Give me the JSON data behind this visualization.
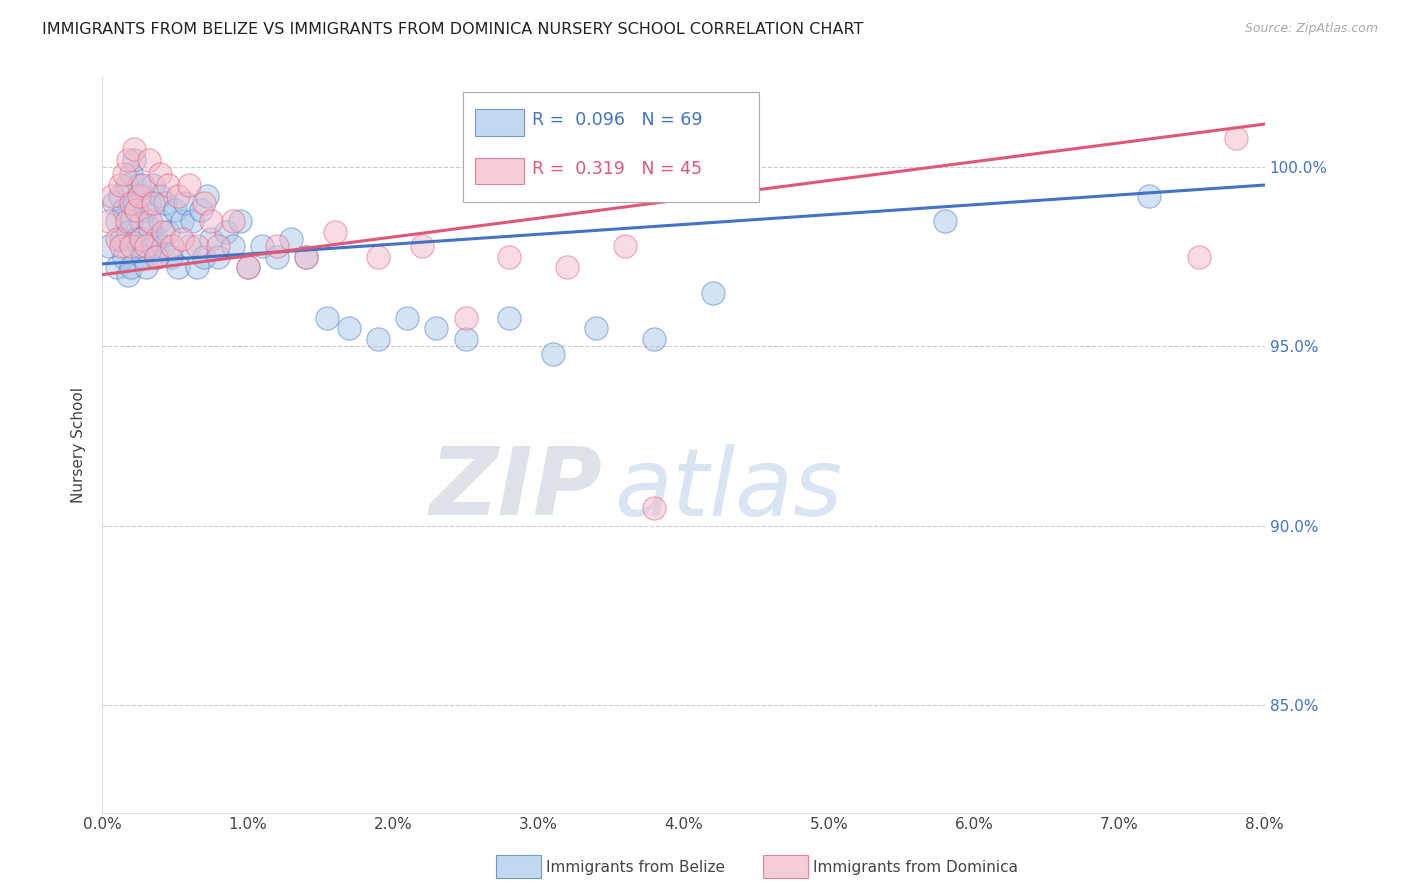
{
  "title": "IMMIGRANTS FROM BELIZE VS IMMIGRANTS FROM DOMINICA NURSERY SCHOOL CORRELATION CHART",
  "source": "Source: ZipAtlas.com",
  "ylabel": "Nursery School",
  "x_min": 0.0,
  "x_max": 8.0,
  "y_min": 82.0,
  "y_max": 102.5,
  "y_ticks": [
    85.0,
    90.0,
    95.0,
    100.0
  ],
  "x_ticks": [
    0.0,
    1.0,
    2.0,
    3.0,
    4.0,
    5.0,
    6.0,
    7.0,
    8.0
  ],
  "belize_color": "#a8c8e8",
  "dominica_color": "#f4b8c8",
  "belize_line_color": "#4472c4",
  "dominica_line_color": "#e05878",
  "belize_R": 0.096,
  "belize_N": 69,
  "dominica_R": 0.319,
  "dominica_N": 45,
  "legend_label_belize": "Immigrants from Belize",
  "legend_label_dominica": "Immigrants from Dominica",
  "watermark_zip": "ZIP",
  "watermark_atlas": "atlas",
  "belize_x": [
    0.05,
    0.08,
    0.1,
    0.1,
    0.12,
    0.13,
    0.15,
    0.15,
    0.17,
    0.18,
    0.18,
    0.2,
    0.2,
    0.2,
    0.22,
    0.22,
    0.23,
    0.25,
    0.25,
    0.27,
    0.28,
    0.28,
    0.3,
    0.3,
    0.32,
    0.33,
    0.35,
    0.35,
    0.37,
    0.38,
    0.4,
    0.4,
    0.42,
    0.43,
    0.45,
    0.47,
    0.5,
    0.52,
    0.55,
    0.57,
    0.6,
    0.62,
    0.65,
    0.68,
    0.7,
    0.72,
    0.75,
    0.8,
    0.85,
    0.9,
    0.95,
    1.0,
    1.1,
    1.2,
    1.3,
    1.4,
    1.55,
    1.7,
    1.9,
    2.1,
    2.3,
    2.5,
    2.8,
    3.1,
    3.4,
    3.8,
    4.2,
    5.8,
    7.2
  ],
  "belize_y": [
    97.8,
    99.0,
    98.5,
    97.2,
    99.2,
    98.0,
    98.8,
    97.5,
    99.5,
    98.2,
    97.0,
    99.8,
    98.5,
    97.2,
    100.2,
    99.0,
    98.0,
    99.5,
    97.8,
    98.5,
    99.2,
    97.5,
    98.8,
    97.2,
    99.0,
    98.3,
    97.8,
    99.5,
    98.0,
    97.5,
    99.2,
    98.5,
    97.8,
    99.0,
    98.2,
    97.5,
    98.8,
    97.2,
    98.5,
    99.0,
    97.8,
    98.5,
    97.2,
    98.8,
    97.5,
    99.2,
    98.0,
    97.5,
    98.2,
    97.8,
    98.5,
    97.2,
    97.8,
    97.5,
    98.0,
    97.5,
    95.8,
    95.5,
    95.2,
    95.8,
    95.5,
    95.2,
    95.8,
    94.8,
    95.5,
    95.2,
    96.5,
    98.5,
    99.2
  ],
  "dominica_x": [
    0.05,
    0.07,
    0.1,
    0.12,
    0.13,
    0.15,
    0.17,
    0.18,
    0.2,
    0.2,
    0.22,
    0.23,
    0.25,
    0.27,
    0.28,
    0.3,
    0.32,
    0.33,
    0.35,
    0.37,
    0.4,
    0.42,
    0.45,
    0.48,
    0.52,
    0.55,
    0.6,
    0.65,
    0.7,
    0.75,
    0.8,
    0.9,
    1.0,
    1.2,
    1.4,
    1.6,
    1.9,
    2.2,
    2.5,
    2.8,
    3.2,
    3.6,
    3.8,
    7.55,
    7.8
  ],
  "dominica_y": [
    98.5,
    99.2,
    98.0,
    99.5,
    97.8,
    99.8,
    98.5,
    100.2,
    99.0,
    97.8,
    100.5,
    98.8,
    99.2,
    98.0,
    99.5,
    97.8,
    100.2,
    98.5,
    99.0,
    97.5,
    99.8,
    98.2,
    99.5,
    97.8,
    99.2,
    98.0,
    99.5,
    97.8,
    99.0,
    98.5,
    97.8,
    98.5,
    97.2,
    97.8,
    97.5,
    98.2,
    97.5,
    97.8,
    95.8,
    97.5,
    97.2,
    97.8,
    90.5,
    97.5,
    100.8
  ]
}
